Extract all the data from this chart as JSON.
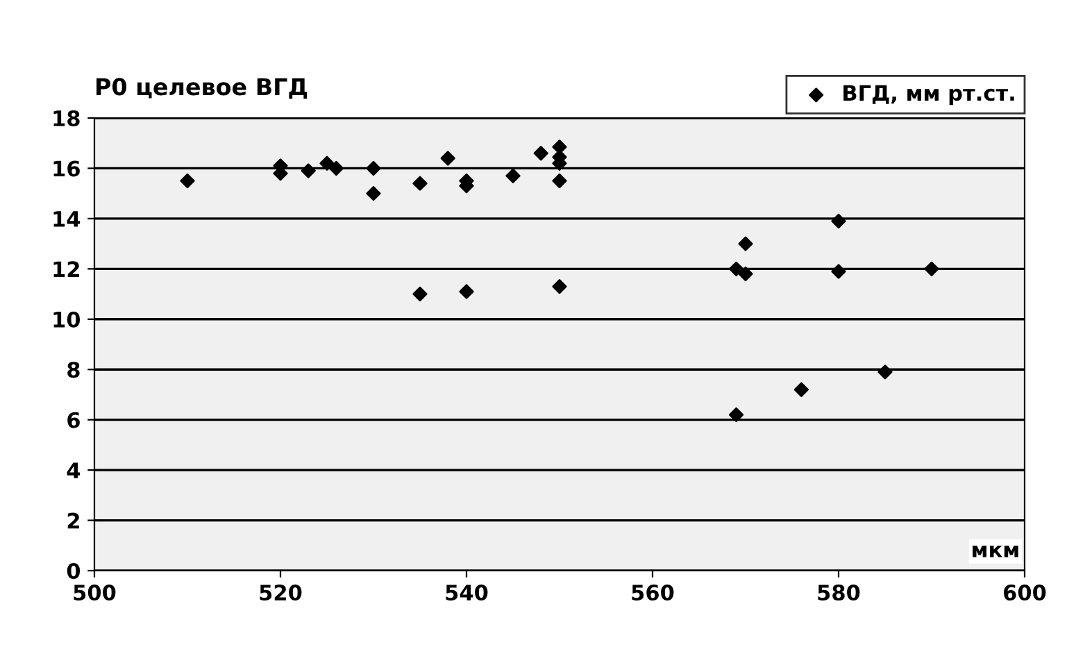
{
  "chart_data": {
    "type": "scatter",
    "ylabel": "Р0 целевое ВГД",
    "xlabel": "мкм",
    "series": [
      {
        "name": "ВГД, мм рт.ст.",
        "color": "#000000",
        "x": [
          510,
          520,
          520,
          523,
          525,
          526,
          530,
          530,
          535,
          535,
          538,
          540,
          540,
          540,
          545,
          548,
          550,
          550,
          550,
          550,
          550,
          569,
          569,
          570,
          570,
          576,
          580,
          580,
          585,
          590
        ],
        "values": [
          15.5,
          16.1,
          15.8,
          15.9,
          16.2,
          16.0,
          16.0,
          15.0,
          15.4,
          11.0,
          16.4,
          15.5,
          15.3,
          11.1,
          15.7,
          16.6,
          16.85,
          16.45,
          16.2,
          15.5,
          11.3,
          12.0,
          6.2,
          13.0,
          11.8,
          7.2,
          13.9,
          11.9,
          7.9,
          12.0
        ]
      }
    ],
    "marker": "diamond",
    "xlim": [
      500,
      600
    ],
    "xticks": [
      500,
      520,
      540,
      560,
      580,
      600
    ],
    "ylim": [
      0,
      18
    ],
    "yticks": [
      0,
      2,
      4,
      6,
      8,
      10,
      12,
      14,
      16,
      18
    ],
    "grid": "y",
    "legend": "top right"
  }
}
